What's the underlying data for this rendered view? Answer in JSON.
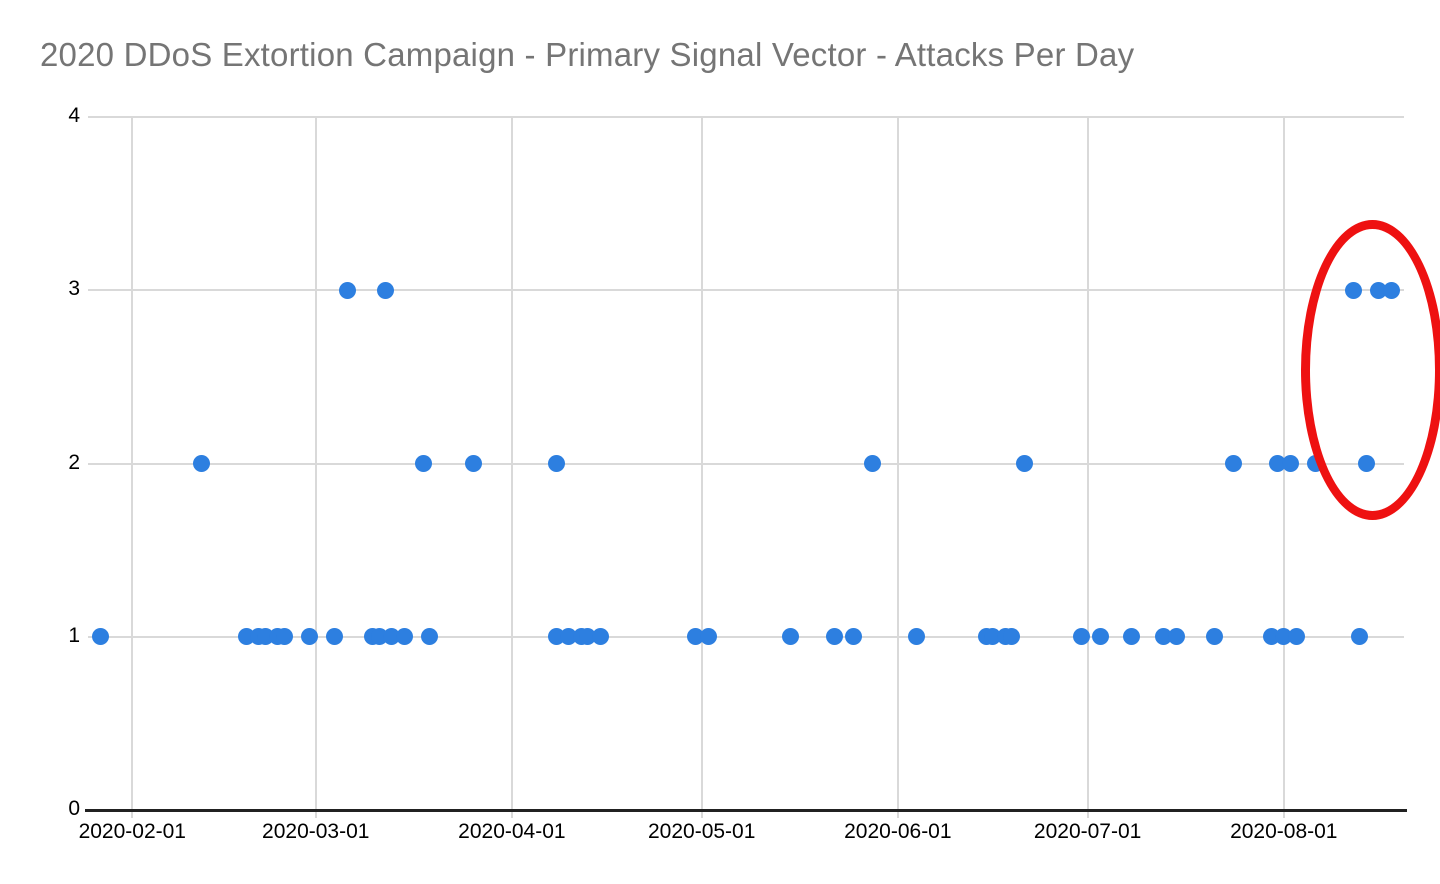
{
  "title": "2020 DDoS Extortion Campaign - Primary Signal Vector - Attacks Per Day",
  "colors": {
    "background": "#ffffff",
    "title_text": "#757575",
    "tick_text": "#000000",
    "gridline": "#d9d9d9",
    "axis_line": "#212121",
    "point": "#2d7fe0",
    "annotation": "#ee1111"
  },
  "chart_data": {
    "type": "scatter",
    "title": "2020 DDoS Extortion Campaign - Primary Signal Vector - Attacks Per Day",
    "xlabel": "",
    "ylabel": "",
    "legend": "none",
    "grid": "on",
    "x_domain": [
      "2020-01-25",
      "2020-08-20"
    ],
    "x_tick_labels": [
      "2020-02-01",
      "2020-03-01",
      "2020-04-01",
      "2020-05-01",
      "2020-06-01",
      "2020-07-01",
      "2020-08-01"
    ],
    "ylim": [
      0,
      4
    ],
    "y_tick_labels": [
      "0",
      "1",
      "2",
      "3",
      "4"
    ],
    "series_name": "Attacks Per Day",
    "points": [
      [
        "2020-01-27",
        1
      ],
      [
        "2020-02-19",
        1
      ],
      [
        "2020-02-21",
        1
      ],
      [
        "2020-02-22",
        1
      ],
      [
        "2020-02-24",
        1
      ],
      [
        "2020-02-25",
        1
      ],
      [
        "2020-02-29",
        1
      ],
      [
        "2020-03-04",
        1
      ],
      [
        "2020-03-10",
        1
      ],
      [
        "2020-03-11",
        1
      ],
      [
        "2020-03-13",
        1
      ],
      [
        "2020-03-15",
        1
      ],
      [
        "2020-03-19",
        1
      ],
      [
        "2020-04-08",
        1
      ],
      [
        "2020-04-10",
        1
      ],
      [
        "2020-04-12",
        1
      ],
      [
        "2020-04-13",
        1
      ],
      [
        "2020-04-15",
        1
      ],
      [
        "2020-04-30",
        1
      ],
      [
        "2020-05-02",
        1
      ],
      [
        "2020-05-15",
        1
      ],
      [
        "2020-05-22",
        1
      ],
      [
        "2020-05-25",
        1
      ],
      [
        "2020-06-04",
        1
      ],
      [
        "2020-06-15",
        1
      ],
      [
        "2020-06-16",
        1
      ],
      [
        "2020-06-18",
        1
      ],
      [
        "2020-06-19",
        1
      ],
      [
        "2020-06-30",
        1
      ],
      [
        "2020-07-03",
        1
      ],
      [
        "2020-07-08",
        1
      ],
      [
        "2020-07-13",
        1
      ],
      [
        "2020-07-15",
        1
      ],
      [
        "2020-07-21",
        1
      ],
      [
        "2020-07-30",
        1
      ],
      [
        "2020-08-01",
        1
      ],
      [
        "2020-08-03",
        1
      ],
      [
        "2020-08-13",
        1
      ],
      [
        "2020-02-12",
        2
      ],
      [
        "2020-03-18",
        2
      ],
      [
        "2020-03-26",
        2
      ],
      [
        "2020-04-08",
        2
      ],
      [
        "2020-05-28",
        2
      ],
      [
        "2020-06-21",
        2
      ],
      [
        "2020-07-24",
        2
      ],
      [
        "2020-07-31",
        2
      ],
      [
        "2020-08-02",
        2
      ],
      [
        "2020-08-06",
        2
      ],
      [
        "2020-08-14",
        2
      ],
      [
        "2020-03-06",
        3
      ],
      [
        "2020-03-12",
        3
      ],
      [
        "2020-08-12",
        3
      ],
      [
        "2020-08-16",
        3
      ],
      [
        "2020-08-18",
        3
      ]
    ],
    "annotation": {
      "shape": "ellipse",
      "color": "#ee1111",
      "center_x_date": "2020-08-15",
      "center_y_value": 2.54,
      "radius_days": 9.9,
      "radius_y_units": 0.815,
      "stroke_width_px": 9
    }
  }
}
